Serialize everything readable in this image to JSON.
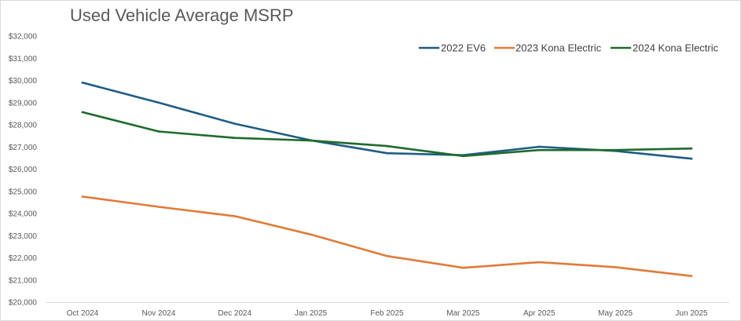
{
  "chart_data": {
    "type": "line",
    "title": "Used Vehicle Average MSRP",
    "xlabel": "",
    "ylabel": "",
    "categories": [
      "Oct 2024",
      "Nov 2024",
      "Dec 2024",
      "Jan 2025",
      "Feb 2025",
      "Mar 2025",
      "Apr 2025",
      "May 2025",
      "Jun 2025"
    ],
    "ylim": [
      20000,
      32000
    ],
    "y_ticks": [
      20000,
      21000,
      22000,
      23000,
      24000,
      25000,
      26000,
      27000,
      28000,
      29000,
      30000,
      31000,
      32000
    ],
    "y_tick_labels": [
      "$20,000",
      "$21,000",
      "$22,000",
      "$23,000",
      "$24,000",
      "$25,000",
      "$26,000",
      "$27,000",
      "$28,000",
      "$29,000",
      "$30,000",
      "$31,000",
      "$32,000"
    ],
    "grid": false,
    "legend_position": "top-right",
    "series": [
      {
        "name": "2022 EV6",
        "color": "#1f5c85",
        "values": [
          29900,
          29000,
          28050,
          27300,
          26720,
          26630,
          27010,
          26820,
          26470
        ]
      },
      {
        "name": "2023 Kona Electric",
        "color": "#e07b39",
        "values": [
          24760,
          24300,
          23880,
          23050,
          22080,
          21550,
          21800,
          21580,
          21180
        ]
      },
      {
        "name": "2024 Kona Electric",
        "color": "#1e6b2a",
        "values": [
          28570,
          27700,
          27410,
          27290,
          27040,
          26590,
          26860,
          26860,
          26930
        ]
      }
    ]
  }
}
